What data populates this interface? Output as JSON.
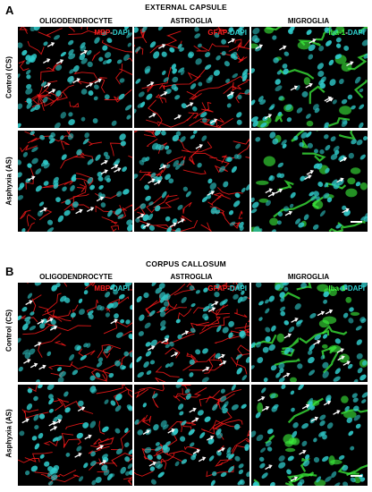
{
  "sections": [
    {
      "letter": "A",
      "title": "EXTERNAL CAPSULE",
      "columns": [
        "OLIGODENDROCYTE",
        "ASTROGLIA",
        "MIGROGLIA"
      ],
      "rows": [
        "Control (CS)",
        "Asphyxia (AS)"
      ],
      "stains": [
        {
          "marker": "MBP",
          "sep": "-",
          "counter": "DAPI",
          "color": "#ff2020"
        },
        {
          "marker": "GFAP",
          "sep": "-",
          "counter": "DAPI",
          "color": "#ff2020"
        },
        {
          "marker": "Iba-1",
          "sep": "-",
          "counter": "DAPI",
          "color": "#40ff40"
        }
      ]
    },
    {
      "letter": "B",
      "title": "CORPUS CALLOSUM",
      "columns": [
        "OLIGODENDROCYTE",
        "ASTROGLIA",
        "MIGROGLIA"
      ],
      "rows": [
        "Control (CS)",
        "Asphyxia (AS)"
      ],
      "stains": [
        {
          "marker": "MBP",
          "sep": "-",
          "counter": "DAPI",
          "color": "#ff2020"
        },
        {
          "marker": "GFAP",
          "sep": "-",
          "counter": "DAPI",
          "color": "#ff2020"
        },
        {
          "marker": "Iba-1",
          "sep": "-",
          "counter": "DAPI",
          "color": "#40ff40"
        }
      ]
    }
  ],
  "colors": {
    "nuclei": "#2fc8c8",
    "red_stain": "#ff1a1a",
    "green_stain": "#3cf03c",
    "arrow": "#ffffff",
    "background": "#000000"
  }
}
